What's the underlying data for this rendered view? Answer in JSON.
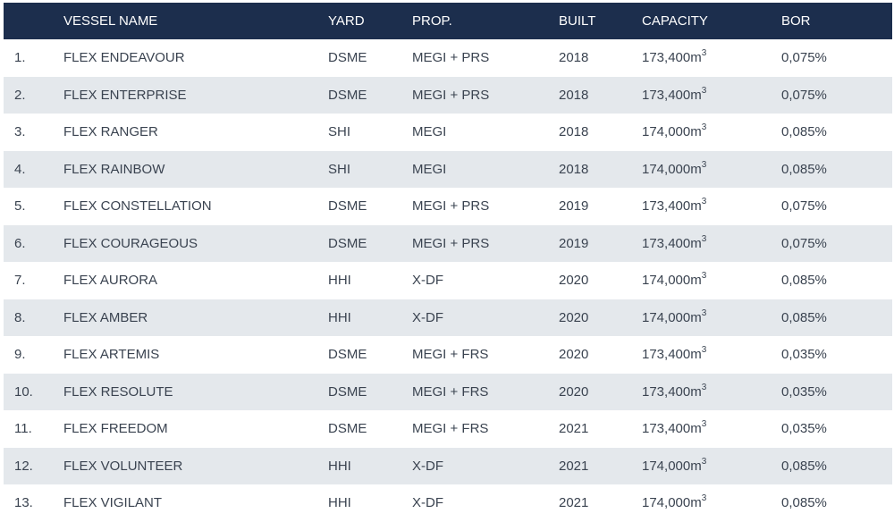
{
  "headers": {
    "num": "",
    "vessel_name": "VESSEL NAME",
    "yard": "YARD",
    "prop": "PROP.",
    "built": "BUILT",
    "capacity": "CAPACITY",
    "bor": "BOR"
  },
  "capacity_unit": "m",
  "capacity_unit_exponent": "3",
  "rows": [
    {
      "num": "1.",
      "name": "FLEX ENDEAVOUR",
      "yard": "DSME",
      "prop": "MEGI + PRS",
      "built": "2018",
      "capacity": "173,400",
      "bor": "0,075%"
    },
    {
      "num": "2.",
      "name": "FLEX ENTERPRISE",
      "yard": "DSME",
      "prop": "MEGI + PRS",
      "built": "2018",
      "capacity": "173,400",
      "bor": "0,075%"
    },
    {
      "num": "3.",
      "name": "FLEX RANGER",
      "yard": "SHI",
      "prop": "MEGI",
      "built": "2018",
      "capacity": "174,000",
      "bor": "0,085%"
    },
    {
      "num": "4.",
      "name": "FLEX RAINBOW",
      "yard": "SHI",
      "prop": "MEGI",
      "built": "2018",
      "capacity": "174,000",
      "bor": "0,085%"
    },
    {
      "num": "5.",
      "name": "FLEX CONSTELLATION",
      "yard": "DSME",
      "prop": "MEGI + PRS",
      "built": "2019",
      "capacity": "173,400",
      "bor": "0,075%"
    },
    {
      "num": "6.",
      "name": "FLEX COURAGEOUS",
      "yard": "DSME",
      "prop": "MEGI + PRS",
      "built": "2019",
      "capacity": "173,400",
      "bor": "0,075%"
    },
    {
      "num": "7.",
      "name": "FLEX AURORA",
      "yard": "HHI",
      "prop": "X-DF",
      "built": "2020",
      "capacity": "174,000",
      "bor": "0,085%"
    },
    {
      "num": "8.",
      "name": "FLEX AMBER",
      "yard": "HHI",
      "prop": "X-DF",
      "built": "2020",
      "capacity": "174,000",
      "bor": "0,085%"
    },
    {
      "num": "9.",
      "name": "FLEX ARTEMIS",
      "yard": "DSME",
      "prop": "MEGI + FRS",
      "built": "2020",
      "capacity": "173,400",
      "bor": "0,035%"
    },
    {
      "num": "10.",
      "name": "FLEX RESOLUTE",
      "yard": "DSME",
      "prop": "MEGI + FRS",
      "built": "2020",
      "capacity": "173,400",
      "bor": "0,035%"
    },
    {
      "num": "11.",
      "name": "FLEX FREEDOM",
      "yard": "DSME",
      "prop": "MEGI + FRS",
      "built": "2021",
      "capacity": "173,400",
      "bor": "0,035%"
    },
    {
      "num": "12.",
      "name": "FLEX VOLUNTEER",
      "yard": "HHI",
      "prop": "X-DF",
      "built": "2021",
      "capacity": "174,000",
      "bor": "0,085%"
    },
    {
      "num": "13.",
      "name": "FLEX VIGILANT",
      "yard": "HHI",
      "prop": "X-DF",
      "built": "2021",
      "capacity": "174,000",
      "bor": "0,085%"
    }
  ]
}
